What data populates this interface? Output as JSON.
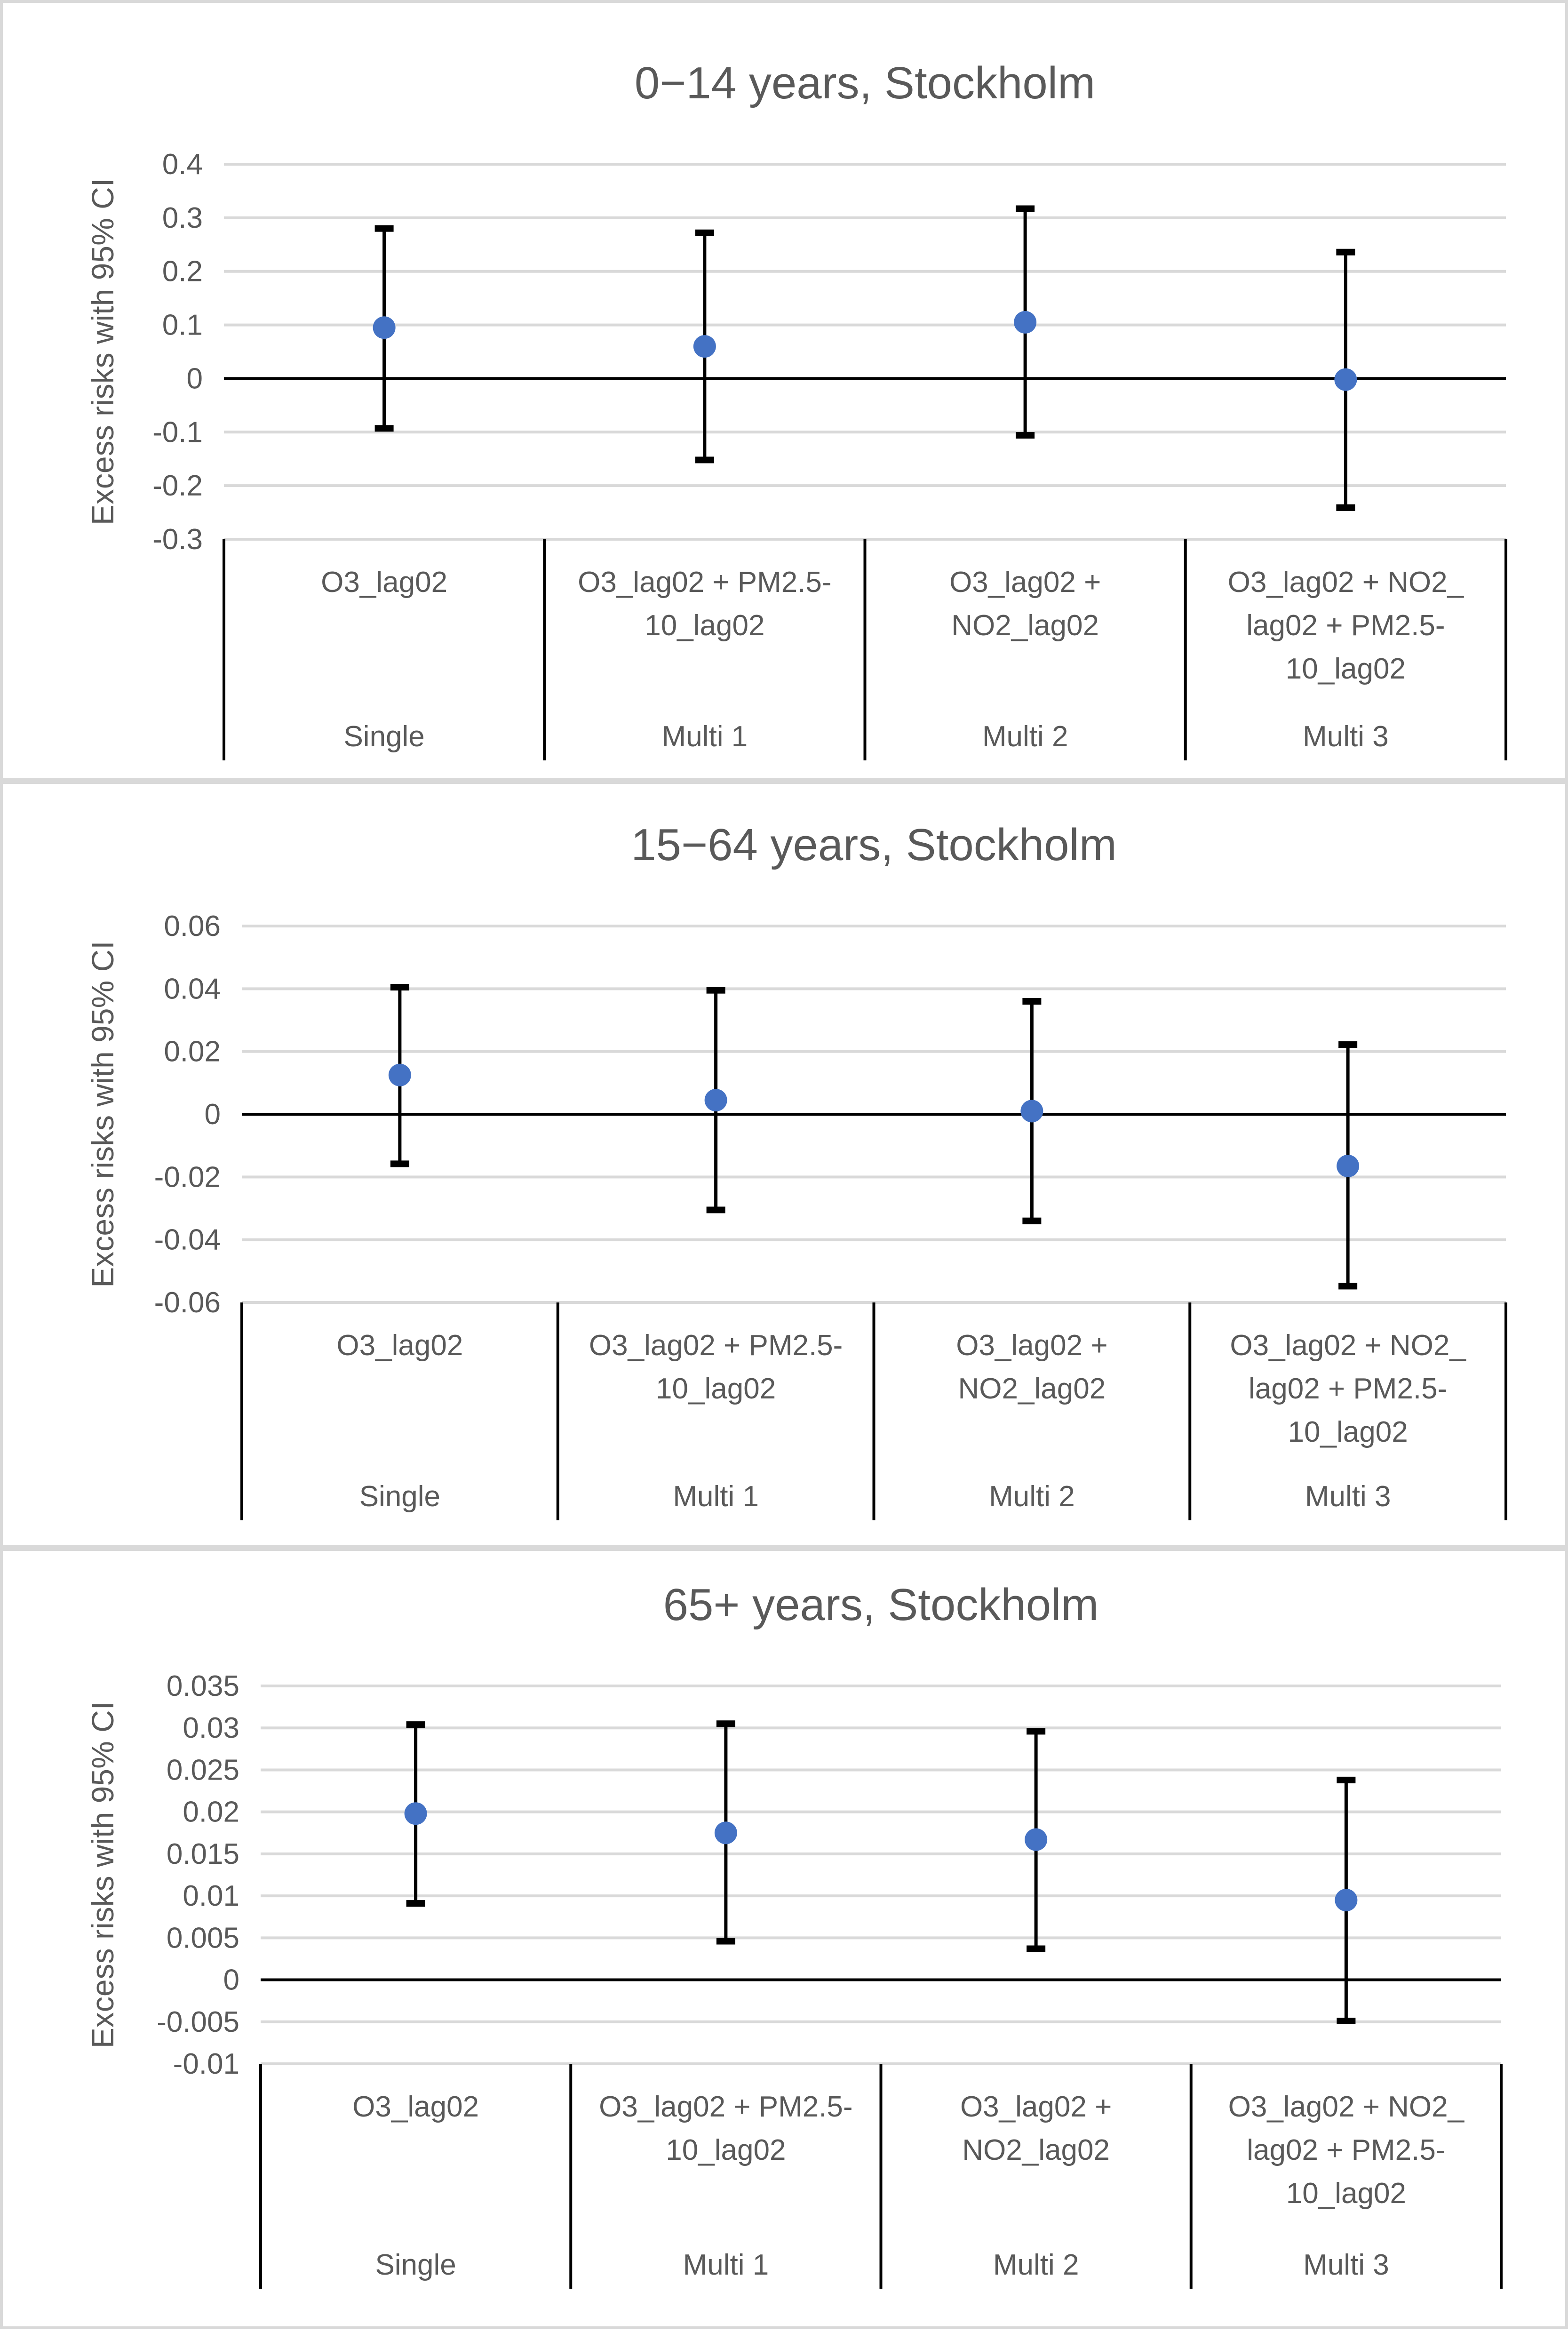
{
  "chart_data": [
    {
      "type": "scatter",
      "title": "0−14 years, Stockholm",
      "ylabel": "Excess risks with 95% CI",
      "ylim": [
        -0.3,
        0.4
      ],
      "yticks": [
        0.4,
        0.3,
        0.2,
        0.1,
        0,
        -0.1,
        -0.2,
        -0.3
      ],
      "ytick_labels": [
        "0.4",
        "0.3",
        "0.2",
        "0.1",
        "0",
        "-0.1",
        "-0.2",
        "-0.3"
      ],
      "categories": [
        {
          "group": "Single",
          "lines": [
            "O3_lag02"
          ]
        },
        {
          "group": "Multi 1",
          "lines": [
            "O3_lag02 + PM2.5-",
            "10_lag02"
          ]
        },
        {
          "group": "Multi 2",
          "lines": [
            "O3_lag02 +",
            "NO2_lag02"
          ]
        },
        {
          "group": "Multi 3",
          "lines": [
            "O3_lag02 + NO2_",
            "lag02 + PM2.5-",
            "10_lag02"
          ]
        }
      ],
      "series": [
        {
          "estimate": [
            0.095,
            0.06,
            0.105,
            -0.002
          ],
          "lower": [
            -0.093,
            -0.152,
            -0.106,
            -0.241
          ],
          "upper": [
            0.28,
            0.272,
            0.317,
            0.236
          ]
        }
      ],
      "grid": true
    },
    {
      "type": "scatter",
      "title": "15−64 years, Stockholm",
      "ylabel": "Excess risks with 95% CI",
      "ylim": [
        -0.06,
        0.06
      ],
      "yticks": [
        0.06,
        0.04,
        0.02,
        0,
        -0.02,
        -0.04,
        -0.06
      ],
      "ytick_labels": [
        "0.06",
        "0.04",
        "0.02",
        "0",
        "-0.02",
        "-0.04",
        "-0.06"
      ],
      "categories": [
        {
          "group": "Single",
          "lines": [
            "O3_lag02"
          ]
        },
        {
          "group": "Multi 1",
          "lines": [
            "O3_lag02 + PM2.5-",
            "10_lag02"
          ]
        },
        {
          "group": "Multi 2",
          "lines": [
            "O3_lag02 +",
            "NO2_lag02"
          ]
        },
        {
          "group": "Multi 3",
          "lines": [
            "O3_lag02 + NO2_",
            "lag02 + PM2.5-",
            "10_lag02"
          ]
        }
      ],
      "series": [
        {
          "estimate": [
            0.0125,
            0.0045,
            0.001,
            -0.0165
          ],
          "lower": [
            -0.0158,
            -0.0305,
            -0.034,
            -0.0548
          ],
          "upper": [
            0.0405,
            0.0395,
            0.036,
            0.0222
          ]
        }
      ],
      "grid": true
    },
    {
      "type": "scatter",
      "title": "65+ years, Stockholm",
      "ylabel": "Excess risks with 95% CI",
      "ylim": [
        -0.01,
        0.035
      ],
      "yticks": [
        0.035,
        0.03,
        0.025,
        0.02,
        0.015,
        0.01,
        0.005,
        0,
        -0.005,
        -0.01
      ],
      "ytick_labels": [
        "0.035",
        "0.03",
        "0.025",
        "0.02",
        "0.015",
        "0.01",
        "0.005",
        "0",
        "-0.005",
        "-0.01"
      ],
      "categories": [
        {
          "group": "Single",
          "lines": [
            "O3_lag02"
          ]
        },
        {
          "group": "Multi 1",
          "lines": [
            "O3_lag02 + PM2.5-",
            "10_lag02"
          ]
        },
        {
          "group": "Multi 2",
          "lines": [
            "O3_lag02 +",
            "NO2_lag02"
          ]
        },
        {
          "group": "Multi 3",
          "lines": [
            "O3_lag02 + NO2_",
            "lag02 + PM2.5-",
            "10_lag02"
          ]
        }
      ],
      "series": [
        {
          "estimate": [
            0.0198,
            0.0175,
            0.0167,
            0.0095
          ],
          "lower": [
            0.0091,
            0.0046,
            0.0037,
            -0.0049
          ],
          "upper": [
            0.0304,
            0.0305,
            0.0296,
            0.0238
          ]
        }
      ],
      "grid": true
    }
  ]
}
